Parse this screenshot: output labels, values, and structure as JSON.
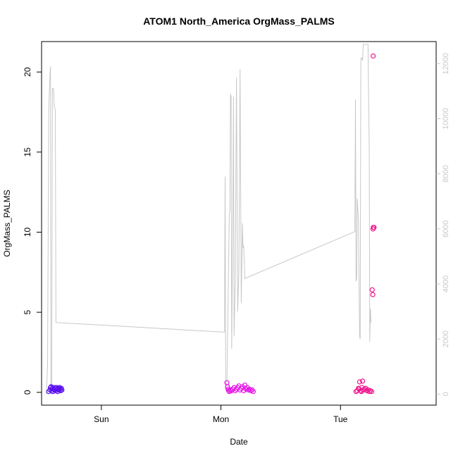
{
  "chart_data": {
    "type": "scatter",
    "title": "ATOM1 North_America OrgMass_PALMS",
    "xlabel": "Date",
    "ylabel": "OrgMass_PALMS",
    "x_unit": "days",
    "xlim": [
      0,
      3.3
    ],
    "ylim": [
      -0.8,
      21.9
    ],
    "y2lim": [
      -400,
      12800
    ],
    "x_ticks": [
      {
        "value": 0.5,
        "label": "Sun"
      },
      {
        "value": 1.5,
        "label": "Mon"
      },
      {
        "value": 2.5,
        "label": "Tue"
      }
    ],
    "y_ticks": [
      0,
      5,
      10,
      15,
      20
    ],
    "y2_ticks": [
      0,
      2000,
      4000,
      6000,
      8000,
      10000,
      12000
    ],
    "grid": false,
    "series": [
      {
        "role": "points",
        "color": "#5a0ff0",
        "points": [
          [
            0.06,
            0.05
          ],
          [
            0.07,
            0.15
          ],
          [
            0.075,
            0.3
          ],
          [
            0.08,
            0.35
          ],
          [
            0.085,
            0.1
          ],
          [
            0.09,
            0.25
          ],
          [
            0.095,
            0.05
          ],
          [
            0.1,
            0.2
          ],
          [
            0.105,
            0.3
          ],
          [
            0.11,
            0.15
          ],
          [
            0.115,
            0.25
          ],
          [
            0.12,
            0.1
          ],
          [
            0.125,
            0.3
          ],
          [
            0.13,
            0.2
          ],
          [
            0.135,
            0.05
          ],
          [
            0.14,
            0.25
          ],
          [
            0.145,
            0.15
          ],
          [
            0.15,
            0.3
          ],
          [
            0.155,
            0.2
          ],
          [
            0.16,
            0.1
          ],
          [
            0.165,
            0.25
          ],
          [
            0.17,
            0.15
          ]
        ]
      },
      {
        "role": "points",
        "color": "#e614e6",
        "points": [
          [
            1.55,
            0.6
          ],
          [
            1.555,
            0.35
          ],
          [
            1.56,
            0.2
          ],
          [
            1.565,
            0.1
          ],
          [
            1.57,
            0.05
          ],
          [
            1.58,
            0.15
          ],
          [
            1.59,
            0.1
          ],
          [
            1.6,
            0.2
          ],
          [
            1.61,
            0.3
          ],
          [
            1.62,
            0.1
          ],
          [
            1.63,
            0.2
          ],
          [
            1.64,
            0.3
          ],
          [
            1.65,
            0.4
          ],
          [
            1.66,
            0.15
          ],
          [
            1.67,
            0.25
          ],
          [
            1.68,
            0.35
          ],
          [
            1.69,
            0.1
          ],
          [
            1.7,
            0.45
          ],
          [
            1.71,
            0.2
          ],
          [
            1.72,
            0.3
          ],
          [
            1.73,
            0.15
          ],
          [
            1.74,
            0.2
          ],
          [
            1.75,
            0.1
          ],
          [
            1.76,
            0.15
          ],
          [
            1.77,
            0.05
          ]
        ]
      },
      {
        "role": "points",
        "color": "#f0148c",
        "points": [
          [
            2.63,
            0.05
          ],
          [
            2.64,
            0.1
          ],
          [
            2.65,
            0.25
          ],
          [
            2.655,
            0.2
          ],
          [
            2.66,
            0.65
          ],
          [
            2.67,
            0.1
          ],
          [
            2.675,
            0.05
          ],
          [
            2.68,
            0.3
          ],
          [
            2.685,
            0.7
          ],
          [
            2.69,
            0.15
          ],
          [
            2.7,
            0.2
          ],
          [
            2.71,
            0.25
          ],
          [
            2.72,
            0.1
          ],
          [
            2.73,
            0.15
          ],
          [
            2.74,
            0.05
          ],
          [
            2.75,
            0.1
          ],
          [
            2.76,
            0.05
          ],
          [
            2.765,
            6.4
          ],
          [
            2.77,
            6.1
          ],
          [
            2.772,
            10.2
          ],
          [
            2.775,
            10.3
          ],
          [
            2.78,
            10.3
          ],
          [
            2.773,
            21.0
          ]
        ]
      },
      {
        "role": "line",
        "axis": "right",
        "color": "#c8c8c8",
        "points": [
          [
            0.04,
            0.0
          ],
          [
            0.05,
            1000
          ],
          [
            0.06,
            10400
          ],
          [
            0.07,
            11600
          ],
          [
            0.075,
            11900
          ],
          [
            0.078,
            400
          ],
          [
            0.085,
            200
          ],
          [
            0.09,
            11100
          ],
          [
            0.1,
            11100
          ],
          [
            0.105,
            10500
          ],
          [
            0.11,
            10400
          ],
          [
            0.115,
            10300
          ],
          [
            0.12,
            2600
          ],
          [
            1.53,
            2250
          ],
          [
            1.535,
            7900
          ],
          [
            1.54,
            400
          ],
          [
            1.55,
            300
          ],
          [
            1.57,
            6500
          ],
          [
            1.575,
            6700
          ],
          [
            1.58,
            10900
          ],
          [
            1.585,
            10800
          ],
          [
            1.59,
            1650
          ],
          [
            1.6,
            6700
          ],
          [
            1.605,
            10800
          ],
          [
            1.61,
            2100
          ],
          [
            1.62,
            4100
          ],
          [
            1.63,
            11500
          ],
          [
            1.64,
            3000
          ],
          [
            1.65,
            4400
          ],
          [
            1.66,
            11800
          ],
          [
            1.67,
            3300
          ],
          [
            1.68,
            6200
          ],
          [
            1.685,
            5300
          ],
          [
            1.69,
            5400
          ],
          [
            1.7,
            4200
          ],
          [
            2.62,
            5900
          ],
          [
            2.625,
            10700
          ],
          [
            2.63,
            4100
          ],
          [
            2.635,
            4200
          ],
          [
            2.64,
            7100
          ],
          [
            2.65,
            6300
          ],
          [
            2.66,
            2100
          ],
          [
            2.665,
            2000
          ],
          [
            2.67,
            12200
          ],
          [
            2.68,
            12200
          ],
          [
            2.685,
            12100
          ],
          [
            2.69,
            12700
          ],
          [
            2.73,
            12700
          ],
          [
            2.735,
            10800
          ],
          [
            2.74,
            9100
          ],
          [
            2.745,
            1900
          ],
          [
            2.75,
            3100
          ],
          [
            2.755,
            2600
          ]
        ]
      }
    ]
  }
}
